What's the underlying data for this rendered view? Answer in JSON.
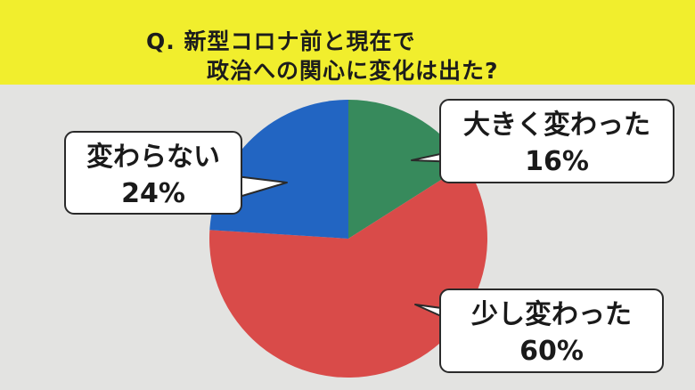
{
  "title": {
    "line1": "Q. 新型コロナ前と現在で",
    "line2": "政治への関心に変化は出た?"
  },
  "chart_data": {
    "type": "pie",
    "categories": [
      "大きく変わった",
      "少し変わった",
      "変わらない"
    ],
    "values": [
      16,
      60,
      24
    ],
    "value_labels": [
      "16%",
      "60%",
      "24%"
    ],
    "colors": [
      "#378a5c",
      "#d94b49",
      "#2265c2"
    ],
    "start_angle_deg": 0,
    "direction": "clockwise"
  }
}
